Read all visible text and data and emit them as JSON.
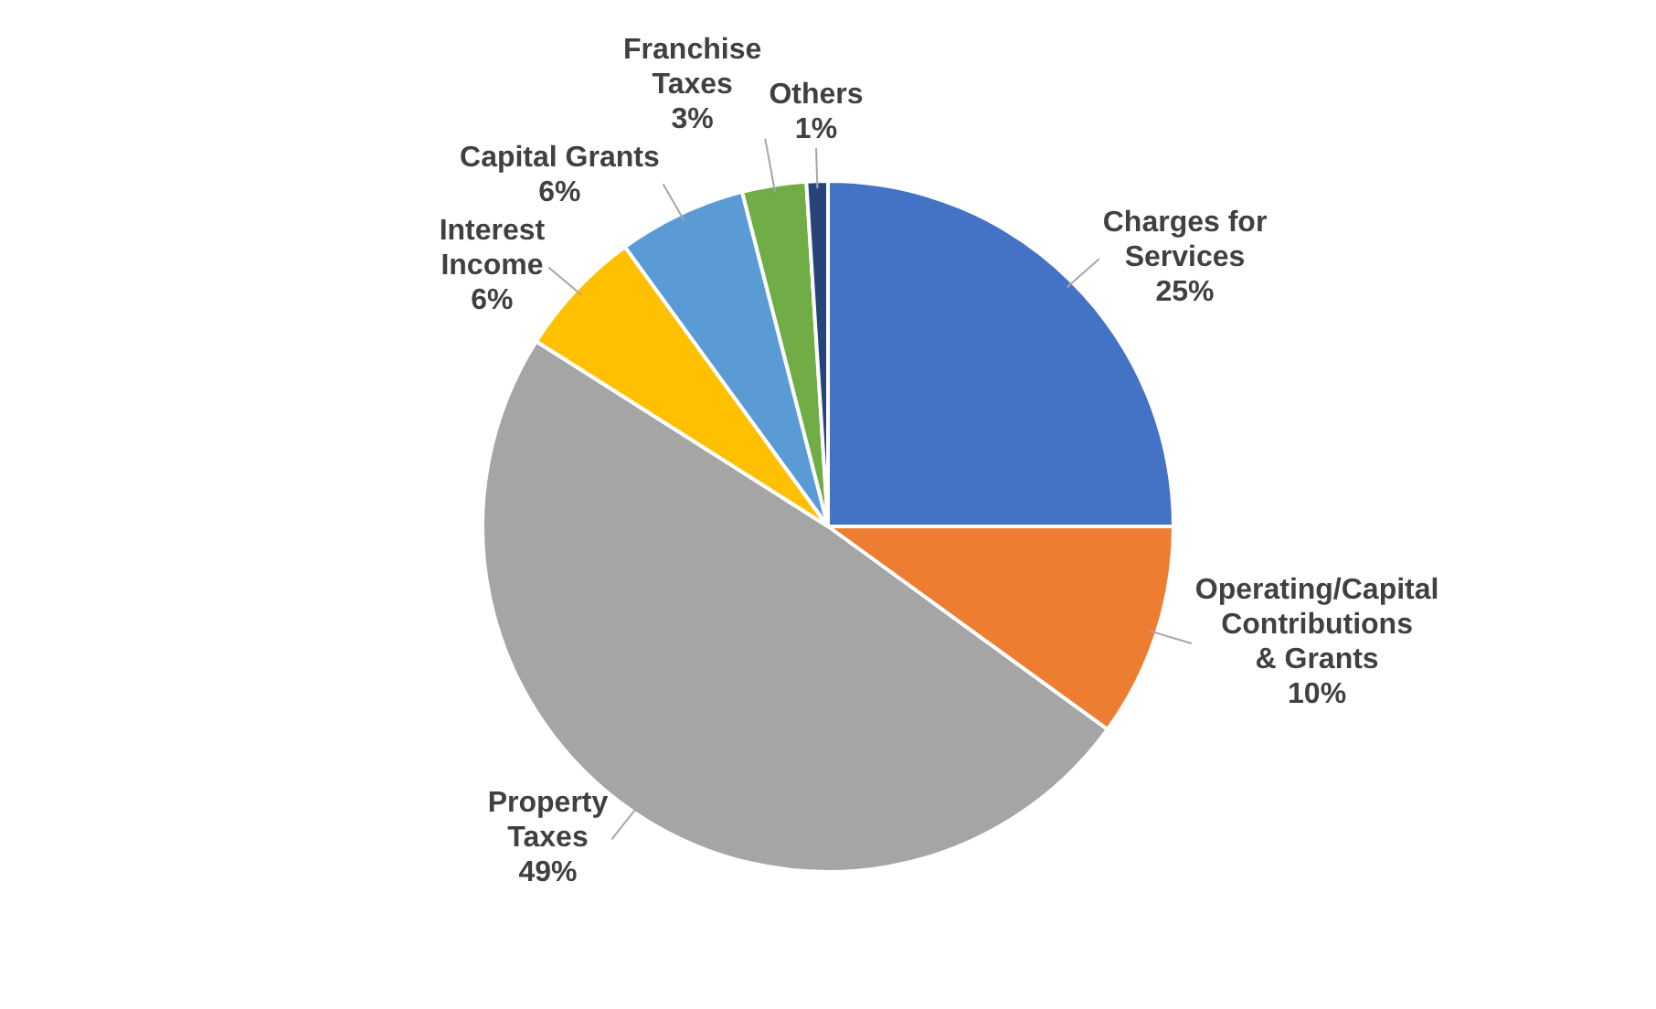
{
  "chart_data": {
    "type": "pie",
    "categories": [
      "Charges for Services",
      "Operating/Capital Contributions & Grants",
      "Property Taxes",
      "Interest Income",
      "Capital Grants",
      "Franchise Taxes",
      "Others"
    ],
    "values": [
      25,
      10,
      49,
      6,
      6,
      3,
      1
    ],
    "colors": [
      "#4472c4",
      "#ed7d31",
      "#a5a5a5",
      "#ffc000",
      "#5b9bd5",
      "#70ad47",
      "#264478"
    ],
    "value_labels": [
      "25%",
      "10%",
      "49%",
      "6%",
      "6%",
      "3%",
      "1%"
    ],
    "legend": false
  }
}
